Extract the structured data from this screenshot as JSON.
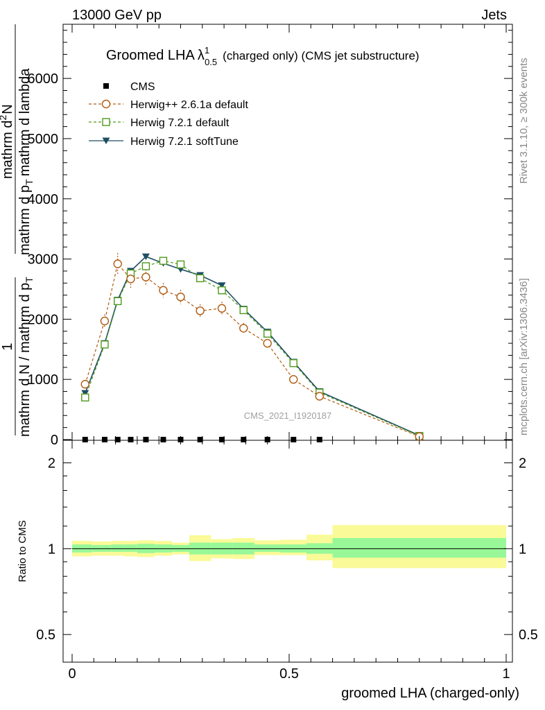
{
  "header": {
    "left": "13000 GeV pp",
    "right": "Jets"
  },
  "plot_title": {
    "main": "Groomed LHA",
    "lambda": "λ",
    "sup": "1",
    "sub": "0.5",
    "suffix": "(charged only) (CMS jet substructure)"
  },
  "watermark": "CMS_2021_I1920187",
  "side_labels": {
    "rivet": "Rivet 3.1.10, ≥ 300k events",
    "mcplots": "mcplots.cern.ch [arXiv:1306.3436]"
  },
  "ylabel_main": {
    "numerator_one": "1",
    "denominator_one": "mathrm d N / mathrm d p",
    "denominator_one_sub": "T",
    "numerator_two": "mathrm d",
    "numerator_two_sup": "2",
    "numerator_two_rest": "N",
    "denominator_two": "mathrm d p",
    "denominator_two_sub": "T",
    "denominator_two_rest": "mathrm d lambda"
  },
  "ylabel_ratio": "Ratio to CMS",
  "xlabel": "groomed LHA (charged-only)",
  "colors": {
    "cms": "#000000",
    "herwigpp": "#b05a10",
    "herwig721": "#4e9a1c",
    "softtune": "#1f4e63",
    "band_inner": "#98f898",
    "band_outer": "#fafa98"
  },
  "chart_data": [
    {
      "type": "line",
      "panel": "main",
      "xlim": [
        0,
        1
      ],
      "ylim": [
        0,
        6900
      ],
      "yticks": [
        0,
        1000,
        2000,
        3000,
        4000,
        5000,
        6000
      ],
      "ytick_labels": [
        "0",
        "1000",
        "2000",
        "3000",
        "4000",
        "5000",
        "6000"
      ],
      "legend": {
        "placement": "top-left",
        "entries": [
          "CMS",
          "Herwig++ 2.6.1a default",
          "Herwig 7.2.1 default",
          "Herwig 7.2.1 softTune"
        ]
      },
      "x": [
        0.03,
        0.075,
        0.105,
        0.135,
        0.17,
        0.21,
        0.25,
        0.295,
        0.345,
        0.395,
        0.45,
        0.51,
        0.57,
        0.8
      ],
      "series": [
        {
          "name": "CMS",
          "marker": "square",
          "values": [
            0,
            0,
            0,
            0,
            0,
            0,
            0,
            0,
            0,
            0,
            0,
            0,
            0,
            null
          ]
        },
        {
          "name": "Herwig++ 2.6.1a default",
          "marker": "circle",
          "dashed": true,
          "values": [
            920,
            1970,
            2920,
            2670,
            2700,
            2480,
            2370,
            2140,
            2180,
            1850,
            1600,
            1000,
            720,
            50
          ],
          "errors": [
            60,
            110,
            180,
            150,
            130,
            120,
            120,
            110,
            110,
            90,
            70,
            40,
            30,
            10
          ]
        },
        {
          "name": "Herwig 7.2.1 default",
          "marker": "square-open",
          "dashed": true,
          "values": [
            700,
            1580,
            2300,
            2760,
            2880,
            2970,
            2910,
            2680,
            2480,
            2150,
            1760,
            1270,
            780,
            60
          ]
        },
        {
          "name": "Herwig 7.2.1 softTune",
          "marker": "triangle-down",
          "dashed": false,
          "values": [
            770,
            1600,
            2320,
            2800,
            3040,
            2930,
            2830,
            2730,
            2560,
            2170,
            1790,
            1290,
            800,
            70
          ]
        }
      ]
    },
    {
      "type": "area",
      "panel": "ratio",
      "xlim": [
        0,
        1
      ],
      "ylim": [
        0.4,
        2.4
      ],
      "log_scale": true,
      "yticks": [
        0.5,
        1,
        2
      ],
      "ytick_labels": [
        "0.5",
        "1",
        "2"
      ],
      "xticks": [
        0,
        0.5,
        1
      ],
      "xtick_labels": [
        "0",
        "0.5",
        "1"
      ],
      "bin_edges": [
        0,
        0.045,
        0.09,
        0.12,
        0.15,
        0.19,
        0.23,
        0.27,
        0.32,
        0.37,
        0.42,
        0.48,
        0.54,
        0.6,
        1.0
      ],
      "inner_band": {
        "lower": [
          0.97,
          0.975,
          0.975,
          0.975,
          0.965,
          0.97,
          0.975,
          0.955,
          0.955,
          0.955,
          0.975,
          0.97,
          0.96,
          0.93
        ],
        "upper": [
          1.035,
          1.03,
          1.035,
          1.035,
          1.04,
          1.035,
          1.03,
          1.05,
          1.05,
          1.05,
          1.035,
          1.035,
          1.045,
          1.09
        ]
      },
      "outer_band": {
        "lower": [
          0.94,
          0.945,
          0.945,
          0.94,
          0.935,
          0.945,
          0.955,
          0.905,
          0.925,
          0.92,
          0.95,
          0.95,
          0.91,
          0.855
        ],
        "upper": [
          1.065,
          1.06,
          1.065,
          1.065,
          1.07,
          1.065,
          1.05,
          1.115,
          1.08,
          1.09,
          1.07,
          1.075,
          1.12,
          1.21
        ]
      }
    }
  ]
}
